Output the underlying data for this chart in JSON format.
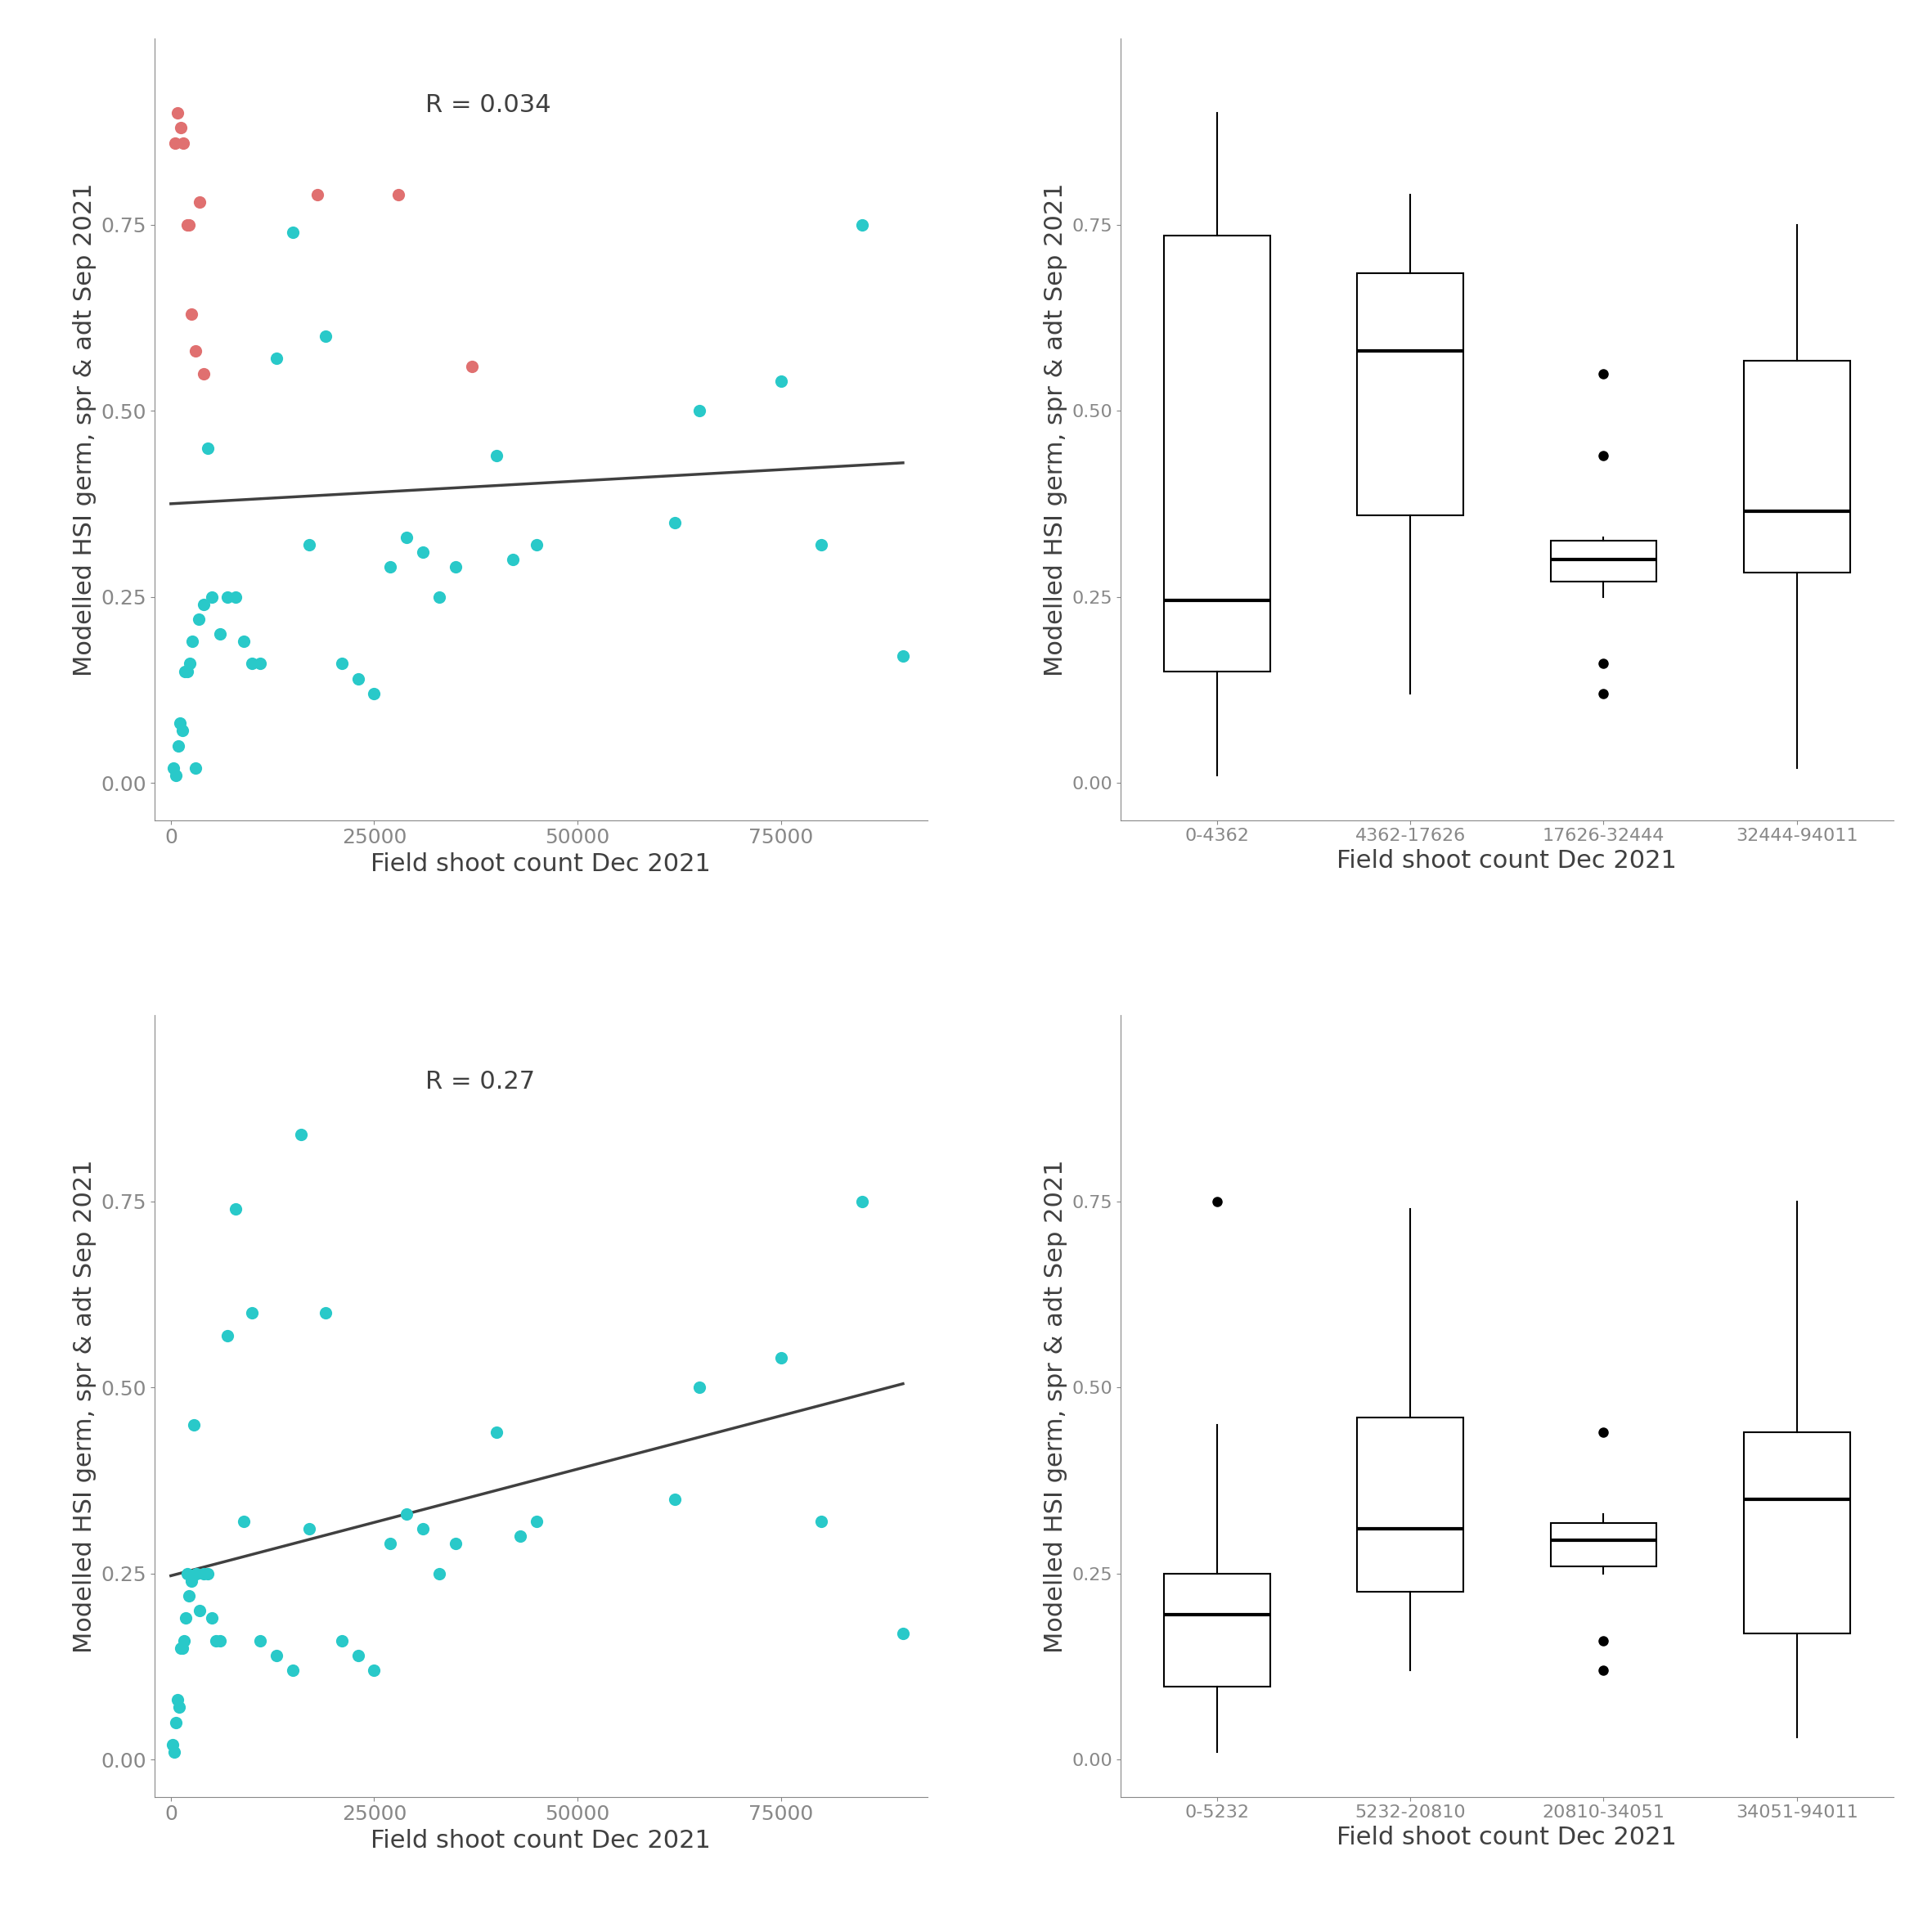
{
  "scatter_top": {
    "north_x": [
      500,
      800,
      1200,
      1500,
      2000,
      2200,
      2500,
      3000,
      3500,
      4000,
      18000,
      28000,
      37000
    ],
    "north_y": [
      0.86,
      0.9,
      0.88,
      0.86,
      0.75,
      0.75,
      0.63,
      0.58,
      0.78,
      0.55,
      0.79,
      0.79,
      0.56
    ],
    "south_x": [
      300,
      600,
      900,
      1100,
      1400,
      1700,
      2000,
      2300,
      2600,
      3000,
      3400,
      4000,
      4500,
      5000,
      6000,
      7000,
      8000,
      9000,
      10000,
      11000,
      13000,
      15000,
      17000,
      19000,
      21000,
      23000,
      25000,
      27000,
      29000,
      31000,
      33000,
      35000,
      40000,
      42000,
      45000,
      62000,
      65000,
      75000,
      80000,
      85000,
      90000
    ],
    "south_y": [
      0.02,
      0.01,
      0.05,
      0.08,
      0.07,
      0.15,
      0.15,
      0.16,
      0.19,
      0.02,
      0.22,
      0.24,
      0.45,
      0.25,
      0.2,
      0.25,
      0.25,
      0.19,
      0.16,
      0.16,
      0.57,
      0.74,
      0.32,
      0.6,
      0.16,
      0.14,
      0.12,
      0.29,
      0.33,
      0.31,
      0.25,
      0.29,
      0.44,
      0.3,
      0.32,
      0.35,
      0.5,
      0.54,
      0.32,
      0.75,
      0.17
    ],
    "R": "R = 0.034",
    "line_x": [
      0,
      90000
    ],
    "line_y": [
      0.375,
      0.43
    ]
  },
  "scatter_bottom": {
    "x": [
      200,
      400,
      600,
      800,
      1000,
      1200,
      1400,
      1600,
      1800,
      2000,
      2200,
      2500,
      2800,
      3100,
      3500,
      4000,
      4500,
      5000,
      5500,
      6000,
      7000,
      8000,
      9000,
      10000,
      11000,
      13000,
      15000,
      16000,
      17000,
      19000,
      21000,
      23000,
      25000,
      27000,
      29000,
      31000,
      33000,
      35000,
      40000,
      43000,
      45000,
      62000,
      65000,
      75000,
      80000,
      85000,
      90000
    ],
    "y": [
      0.02,
      0.01,
      0.05,
      0.08,
      0.07,
      0.15,
      0.15,
      0.16,
      0.19,
      0.25,
      0.22,
      0.24,
      0.45,
      0.25,
      0.2,
      0.25,
      0.25,
      0.19,
      0.16,
      0.16,
      0.57,
      0.74,
      0.32,
      0.6,
      0.16,
      0.14,
      0.12,
      0.84,
      0.31,
      0.6,
      0.16,
      0.14,
      0.12,
      0.29,
      0.33,
      0.31,
      0.25,
      0.29,
      0.44,
      0.3,
      0.32,
      0.35,
      0.5,
      0.54,
      0.32,
      0.75,
      0.17
    ],
    "R": "R = 0.27",
    "line_x": [
      0,
      90000
    ],
    "line_y": [
      0.247,
      0.505
    ]
  },
  "boxplot_top": {
    "labels": [
      "0-4362",
      "4362-17626",
      "17626-32444",
      "32444-94011"
    ],
    "data": [
      [
        0.02,
        0.01,
        0.05,
        0.08,
        0.07,
        0.15,
        0.15,
        0.16,
        0.19,
        0.86,
        0.9,
        0.88,
        0.86,
        0.75,
        0.75,
        0.22,
        0.24,
        0.45,
        0.25,
        0.2,
        0.25,
        0.25,
        0.69,
        0.73
      ],
      [
        0.57,
        0.74,
        0.6,
        0.16,
        0.14,
        0.12,
        0.78,
        0.79,
        0.56,
        0.58,
        0.63
      ],
      [
        0.29,
        0.33,
        0.31,
        0.25,
        0.29,
        0.44,
        0.3,
        0.32,
        0.16,
        0.12,
        0.55
      ],
      [
        0.35,
        0.5,
        0.54,
        0.32,
        0.75,
        0.17,
        0.38,
        0.35,
        0.65,
        0.69,
        0.03,
        0.02
      ]
    ]
  },
  "boxplot_bottom": {
    "labels": [
      "0-5232",
      "5232-20810",
      "20810-34051",
      "34051-94011"
    ],
    "data": [
      [
        0.02,
        0.01,
        0.05,
        0.08,
        0.07,
        0.15,
        0.15,
        0.16,
        0.19,
        0.22,
        0.24,
        0.45,
        0.25,
        0.2,
        0.25,
        0.25,
        0.38,
        0.41
      ],
      [
        0.57,
        0.74,
        0.6,
        0.16,
        0.14,
        0.12,
        0.31,
        0.33,
        0.35,
        0.3,
        0.29
      ],
      [
        0.29,
        0.33,
        0.31,
        0.25,
        0.29,
        0.44,
        0.3,
        0.32,
        0.16,
        0.12
      ],
      [
        0.35,
        0.5,
        0.54,
        0.32,
        0.75,
        0.17,
        0.38,
        0.35,
        0.16,
        0.17,
        0.03
      ]
    ],
    "outliers_group0": [
      0.75
    ]
  },
  "colors": {
    "north": "#E07070",
    "south": "#29C9C9",
    "line": "#404040",
    "box_line": "#000000",
    "box_fill": "#ffffff",
    "background": "#ffffff",
    "text": "#404040"
  },
  "ylabel": "Modelled HSI germ, spr & adt Sep 2021",
  "xlabel": "Field shoot count Dec 2021",
  "ylim": [
    -0.05,
    1.0
  ],
  "xlim": [
    -2000,
    93000
  ]
}
